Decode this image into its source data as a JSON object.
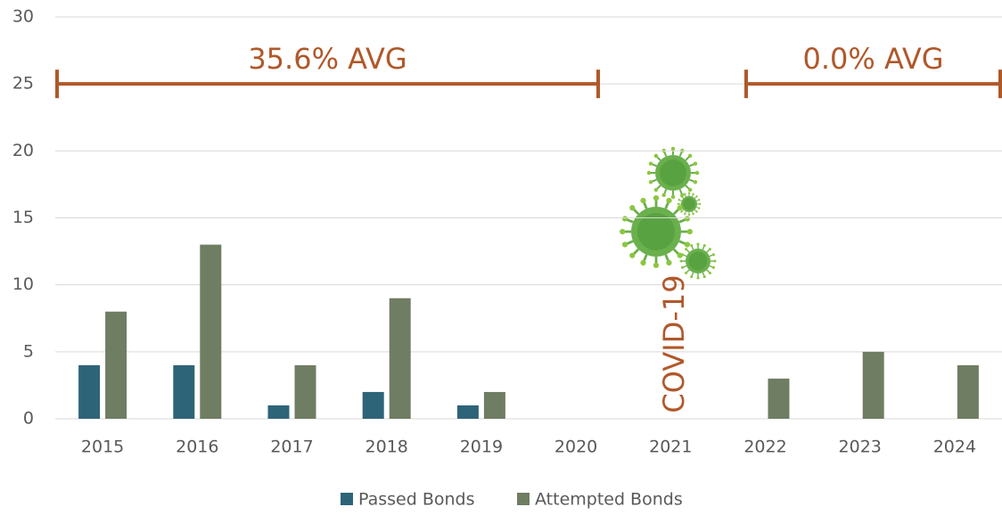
{
  "chart_data": {
    "type": "bar",
    "categories": [
      "2015",
      "2016",
      "2017",
      "2018",
      "2019",
      "2020",
      "2021",
      "2022",
      "2023",
      "2024"
    ],
    "series": [
      {
        "name": "Passed Bonds",
        "color": "#2e6478",
        "values": [
          4,
          4,
          1,
          2,
          1,
          0,
          0,
          0,
          0,
          0
        ]
      },
      {
        "name": "Attempted Bonds",
        "color": "#6f7d62",
        "values": [
          8,
          13,
          4,
          9,
          2,
          0,
          0,
          3,
          5,
          4
        ]
      }
    ],
    "ylim": [
      0,
      30
    ],
    "yticks": [
      0,
      5,
      10,
      15,
      20,
      25,
      30
    ],
    "grid": true,
    "annotations": [
      "35.6% AVG",
      "0.0% AVG",
      "COVID-19"
    ]
  }
}
